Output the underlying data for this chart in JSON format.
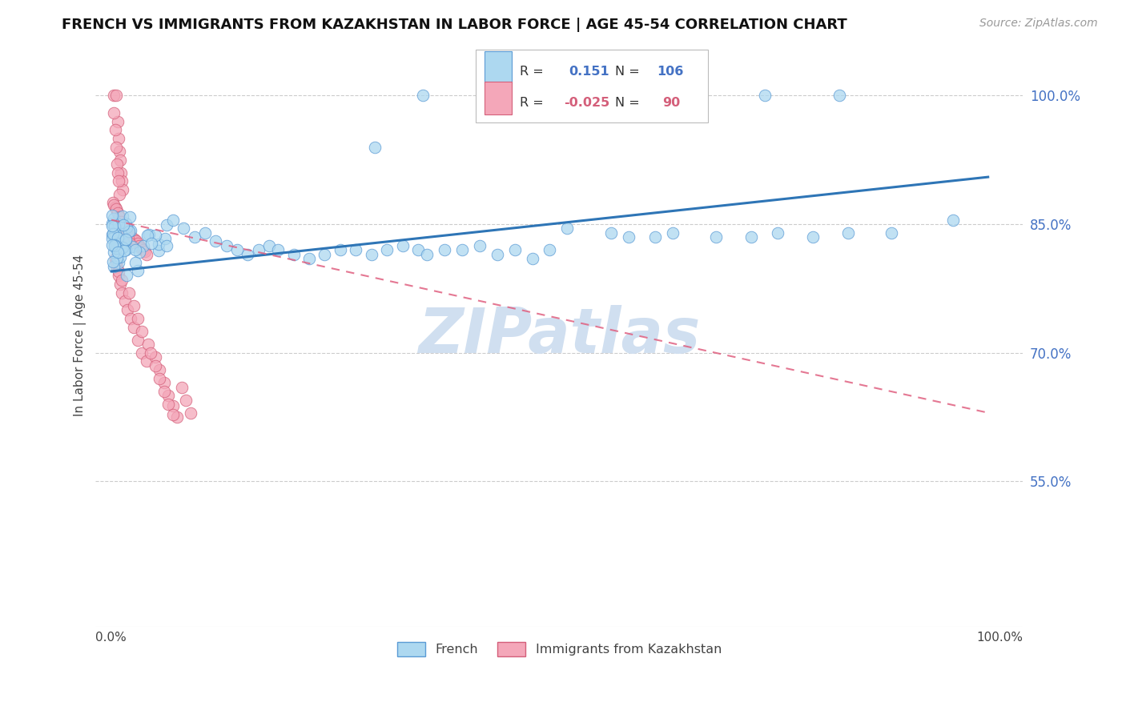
{
  "title": "FRENCH VS IMMIGRANTS FROM KAZAKHSTAN IN LABOR FORCE | AGE 45-54 CORRELATION CHART",
  "source": "Source: ZipAtlas.com",
  "ylabel": "In Labor Force | Age 45-54",
  "xlim": [
    0.0,
    1.0
  ],
  "ylim": [
    0.38,
    1.06
  ],
  "yticks": [
    0.55,
    0.7,
    0.85,
    1.0
  ],
  "french_R": 0.151,
  "french_N": 106,
  "kaz_R": -0.025,
  "kaz_N": 90,
  "french_color": "#ADD8F0",
  "french_edge_color": "#5B9BD5",
  "kaz_color": "#F4A7B9",
  "kaz_edge_color": "#D45F7A",
  "trend_french_color": "#2E75B6",
  "trend_kaz_color": "#E06080",
  "watermark": "ZIPatlas",
  "watermark_color": "#D0DFF0",
  "legend_french_label": "French",
  "legend_kaz_label": "Immigrants from Kazakhstan",
  "trend_french_y0": 0.795,
  "trend_french_y1": 0.905,
  "trend_kaz_y0": 0.855,
  "trend_kaz_y1": 0.63
}
